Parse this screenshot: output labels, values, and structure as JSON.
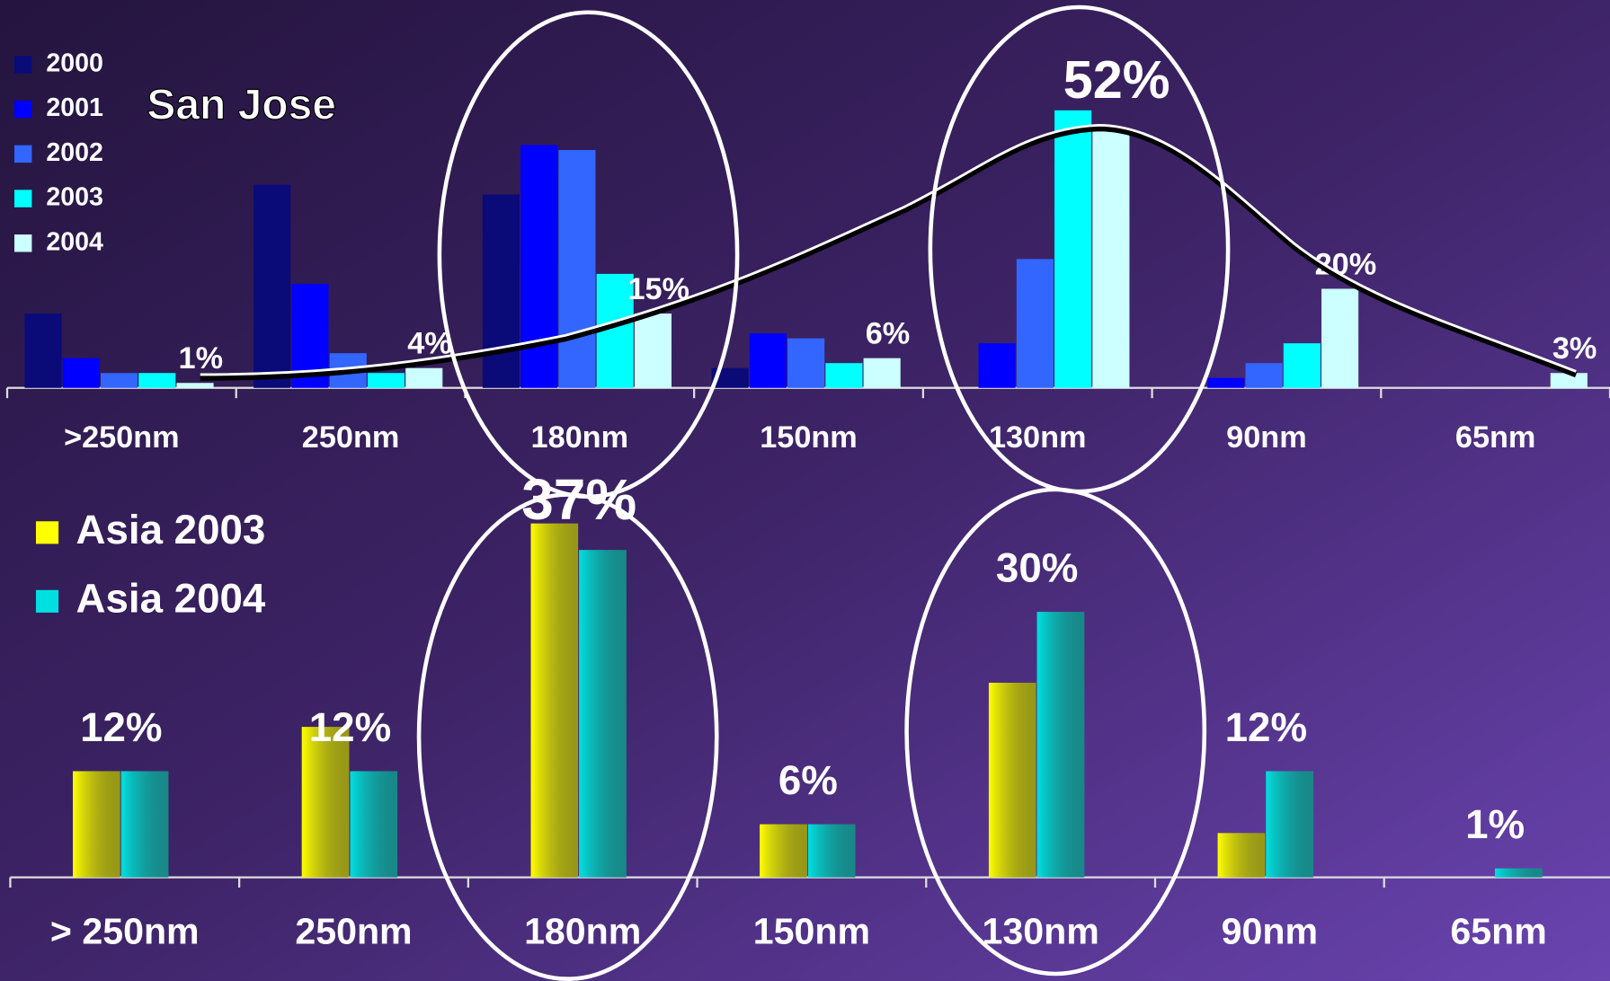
{
  "chart_data": [
    {
      "type": "bar",
      "title": "San Jose",
      "categories": [
        ">250nm",
        "250nm",
        "180nm",
        "150nm",
        "130nm",
        "90nm",
        "65nm"
      ],
      "series": [
        {
          "name": "2000",
          "color": "#0a0a78",
          "values": [
            15,
            41,
            39,
            4,
            0,
            0,
            0
          ]
        },
        {
          "name": "2001",
          "color": "#0000ff",
          "values": [
            6,
            21,
            49,
            11,
            9,
            2,
            0
          ]
        },
        {
          "name": "2002",
          "color": "#3366ff",
          "values": [
            3,
            7,
            48,
            10,
            26,
            5,
            0
          ]
        },
        {
          "name": "2003",
          "color": "#00ffff",
          "values": [
            3,
            3,
            23,
            5,
            56,
            9,
            0
          ]
        },
        {
          "name": "2004",
          "color": "#ccffff",
          "values": [
            1,
            4,
            15,
            6,
            52,
            20,
            3
          ],
          "value_labels": [
            "1%",
            "4%",
            "15%",
            "6%",
            "52%",
            "20%",
            "3%"
          ]
        }
      ]
    },
    {
      "type": "bar",
      "categories": [
        "> 250nm",
        "250nm",
        "180nm",
        "150nm",
        "130nm",
        "90nm",
        "65nm"
      ],
      "series": [
        {
          "name": "Asia 2003",
          "color": "#ffff00",
          "values": [
            12,
            17,
            40,
            6,
            22,
            5,
            0
          ]
        },
        {
          "name": "Asia 2004",
          "color": "#00e0e0",
          "values": [
            12,
            12,
            37,
            6,
            30,
            12,
            1
          ],
          "value_labels": [
            "12%",
            "12%",
            "37%",
            "6%",
            "30%",
            "12%",
            "1%"
          ]
        }
      ]
    }
  ]
}
